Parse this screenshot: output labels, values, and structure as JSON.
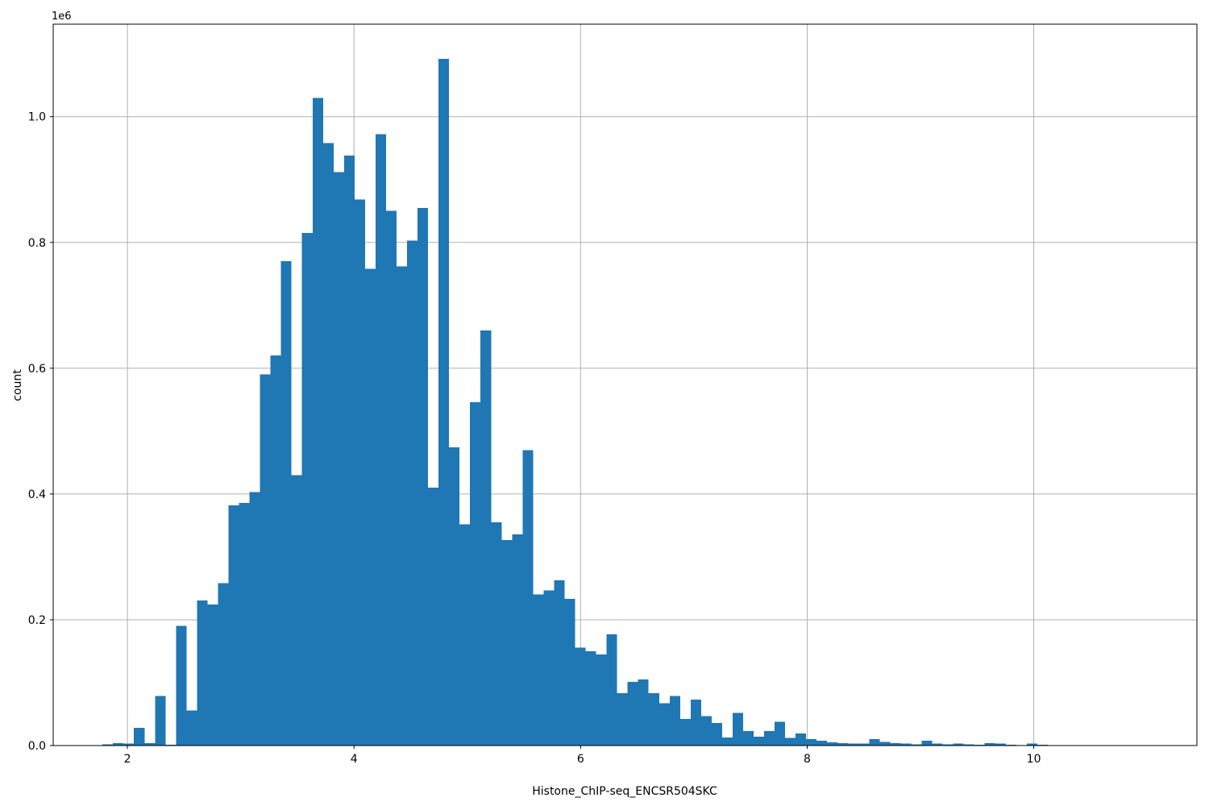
{
  "figure": {
    "background": "#ffffff"
  },
  "chart_data": {
    "type": "bar",
    "subtype": "histogram",
    "title": "",
    "xlabel": "Histone_ChIP-seq_ENCSR504SKC",
    "ylabel": "count",
    "y_offset_label": "1e6",
    "xlim": [
      1.345,
      11.44
    ],
    "ylim": [
      0,
      1147000
    ],
    "x_ticks": [
      {
        "value": 2,
        "label": "2"
      },
      {
        "value": 4,
        "label": "4"
      },
      {
        "value": 6,
        "label": "6"
      },
      {
        "value": 8,
        "label": "8"
      },
      {
        "value": 10,
        "label": "10"
      }
    ],
    "y_ticks": [
      {
        "value": 0,
        "label": "0.0"
      },
      {
        "value": 200000,
        "label": "0.2"
      },
      {
        "value": 400000,
        "label": "0.4"
      },
      {
        "value": 600000,
        "label": "0.6"
      },
      {
        "value": 800000,
        "label": "0.8"
      },
      {
        "value": 1000000,
        "label": "1.0"
      }
    ],
    "grid": true,
    "legend_position": "none",
    "bar_color": "#1f77b4",
    "grid_color": "#b0b0b0",
    "axis_color": "#000000",
    "text_color": "#000000",
    "bins": {
      "start": 1.78,
      "width": 0.0927
    },
    "counts": [
      2000,
      4000,
      3000,
      28000,
      4000,
      79000,
      1000,
      190000,
      56000,
      231000,
      224000,
      258000,
      382000,
      386000,
      403000,
      590000,
      620000,
      770000,
      430000,
      815000,
      1030000,
      958000,
      912000,
      938000,
      868000,
      758000,
      972000,
      850000,
      762000,
      803000,
      855000,
      410000,
      1092000,
      474000,
      352000,
      546000,
      660000,
      355000,
      327000,
      336000,
      470000,
      240000,
      247000,
      263000,
      233000,
      156000,
      150000,
      145000,
      177000,
      83000,
      101000,
      105000,
      83000,
      67000,
      79000,
      42000,
      73000,
      47000,
      36000,
      13000,
      52000,
      23000,
      14000,
      23000,
      38000,
      12000,
      19000,
      10000,
      8000,
      5000,
      4000,
      3000,
      3000,
      10000,
      6000,
      4000,
      3000,
      2000,
      8000,
      3000,
      2000,
      3000,
      2000,
      1000,
      4000,
      3000,
      1000,
      500,
      3000,
      1000
    ]
  }
}
